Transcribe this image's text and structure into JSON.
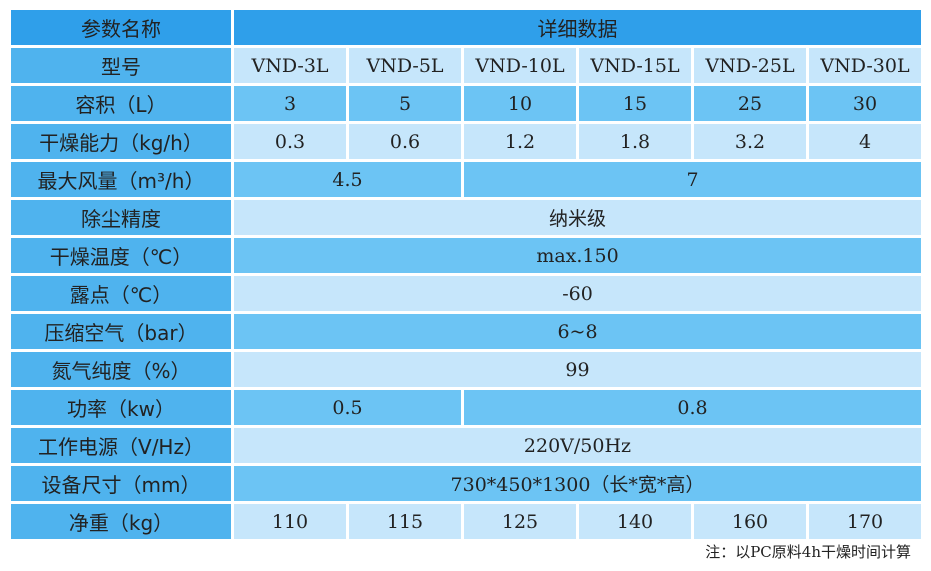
{
  "table": {
    "header": [
      "参数名称",
      "详细数据"
    ],
    "rows": [
      {
        "label": "型号",
        "cells": [
          "VND-3L",
          "VND-5L",
          "VND-10L",
          "VND-15L",
          "VND-25L",
          "VND-30L"
        ]
      },
      {
        "label": "容积（L）",
        "cells": [
          "3",
          "5",
          "10",
          "15",
          "25",
          "30"
        ]
      },
      {
        "label": "干燥能力（kg/h）",
        "cells": [
          "0.3",
          "0.6",
          "1.2",
          "1.8",
          "3.2",
          "4"
        ]
      },
      {
        "label": "最大风量（m³/h）",
        "cells": [
          "4.5",
          "7"
        ]
      },
      {
        "label": "除尘精度",
        "cells": [
          "纳米级"
        ]
      },
      {
        "label": "干燥温度（℃）",
        "cells": [
          "max.150"
        ]
      },
      {
        "label": "露点（℃）",
        "cells": [
          "-60"
        ]
      },
      {
        "label": "压缩空气（bar）",
        "cells": [
          "6~8"
        ]
      },
      {
        "label": "氮气纯度（%）",
        "cells": [
          "99"
        ]
      },
      {
        "label": "功率（kw）",
        "cells": [
          "0.5",
          "0.8"
        ]
      },
      {
        "label": "工作电源（V/Hz）",
        "cells": [
          "220V/50Hz"
        ]
      },
      {
        "label": "设备尺寸（mm）",
        "cells": [
          "730*450*1300（长*宽*高）"
        ]
      },
      {
        "label": "净重（kg）",
        "cells": [
          "110",
          "115",
          "125",
          "140",
          "160",
          "170"
        ]
      }
    ]
  },
  "note": "注：以PC原料4h干燥时间计算"
}
